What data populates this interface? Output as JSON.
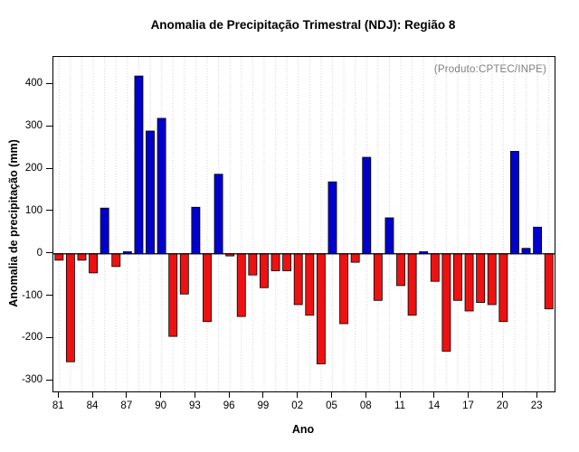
{
  "chart_data": {
    "type": "bar",
    "title": "Anomalia de Precipitação Trimestral (NDJ): Região 8",
    "xlabel": "Ano",
    "ylabel": "Anomalia de precipitação (mm)",
    "annotation": "(Produto:CPTEC/INPE)",
    "ylim": [
      -325,
      465
    ],
    "yticks": [
      400,
      300,
      200,
      100,
      0,
      -100,
      -200,
      -300
    ],
    "xticks": [
      {
        "year": 1981,
        "label": "81"
      },
      {
        "year": 1984,
        "label": "84"
      },
      {
        "year": 1987,
        "label": "87"
      },
      {
        "year": 1990,
        "label": "90"
      },
      {
        "year": 1993,
        "label": "93"
      },
      {
        "year": 1996,
        "label": "96"
      },
      {
        "year": 1999,
        "label": "99"
      },
      {
        "year": 2002,
        "label": "02"
      },
      {
        "year": 2005,
        "label": "05"
      },
      {
        "year": 2008,
        "label": "08"
      },
      {
        "year": 2011,
        "label": "11"
      },
      {
        "year": 2014,
        "label": "14"
      },
      {
        "year": 2017,
        "label": "17"
      },
      {
        "year": 2020,
        "label": "20"
      },
      {
        "year": 2023,
        "label": "23"
      }
    ],
    "years": [
      1981,
      1982,
      1983,
      1984,
      1985,
      1986,
      1987,
      1988,
      1989,
      1990,
      1991,
      1992,
      1993,
      1994,
      1995,
      1996,
      1997,
      1998,
      1999,
      2000,
      2001,
      2002,
      2003,
      2004,
      2005,
      2006,
      2007,
      2008,
      2009,
      2010,
      2011,
      2012,
      2013,
      2014,
      2015,
      2016,
      2017,
      2018,
      2019,
      2020,
      2021,
      2022,
      2023,
      2024
    ],
    "values": [
      -15,
      -255,
      -15,
      -45,
      108,
      -30,
      5,
      420,
      290,
      320,
      -195,
      -95,
      110,
      -160,
      188,
      -5,
      -148,
      -50,
      -80,
      -40,
      -40,
      -120,
      -145,
      -260,
      170,
      -165,
      -20,
      228,
      -110,
      85,
      -75,
      -145,
      5,
      -65,
      -230,
      -110,
      -135,
      -115,
      -120,
      -160,
      242,
      13,
      63,
      -130
    ],
    "positive_color": "#0000CD",
    "negative_color": "#EE1111",
    "grid": "vertical-dotted",
    "legend": "none"
  }
}
